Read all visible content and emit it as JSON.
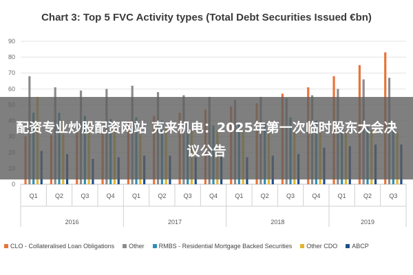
{
  "chart_data": {
    "type": "bar",
    "title": "Chart 3: Top 5 FVC Activity types (Total Debt Securities Issued €bn)",
    "categories": [
      "Q1",
      "Q2",
      "Q3",
      "Q4",
      "Q1",
      "Q2",
      "Q3",
      "Q4",
      "Q1",
      "Q2",
      "Q3",
      "Q4",
      "Q1",
      "Q2",
      "Q3"
    ],
    "groups": [
      {
        "label": "2016",
        "span": 4
      },
      {
        "label": "2017",
        "span": 4
      },
      {
        "label": "2018",
        "span": 4
      },
      {
        "label": "2019",
        "span": 3
      }
    ],
    "series": [
      {
        "name": "CLO - Collateralised Loan Obligations",
        "color": "#e8743b",
        "values": [
          30,
          31,
          33,
          35,
          40,
          43,
          45,
          47,
          49,
          51,
          57,
          61,
          68,
          75,
          83
        ]
      },
      {
        "name": "Other",
        "color": "#8c8c8c",
        "values": [
          68,
          61,
          59,
          60,
          62,
          58,
          56,
          55,
          53,
          55,
          54,
          56,
          60,
          66,
          67
        ]
      },
      {
        "name": "RMBS - Residential Mortgage Backed Securities",
        "color": "#2e8fb4",
        "values": [
          45,
          45,
          43,
          41,
          42,
          40,
          38,
          37,
          38,
          39,
          42,
          40,
          37,
          36,
          35
        ]
      },
      {
        "name": "Other CDO",
        "color": "#e3b52c",
        "values": [
          55,
          40,
          38,
          37,
          36,
          35,
          34,
          34,
          34,
          33,
          33,
          33,
          34,
          34,
          33
        ]
      },
      {
        "name": "ABCP",
        "color": "#1f4e8c",
        "values": [
          21,
          19,
          16,
          17,
          18,
          18,
          17,
          18,
          17,
          18,
          19,
          23,
          24,
          25,
          25
        ]
      }
    ],
    "ylim": [
      0,
      90
    ],
    "yticks": [
      "0",
      "10",
      "20",
      "30",
      "40",
      "50",
      "60",
      "70",
      "80",
      "90"
    ],
    "grid": true,
    "legend_position": "bottom"
  },
  "overlay": {
    "text": "配资专业炒股配资网站 克来机电：2025年第一次临时股东大会决议公告"
  }
}
